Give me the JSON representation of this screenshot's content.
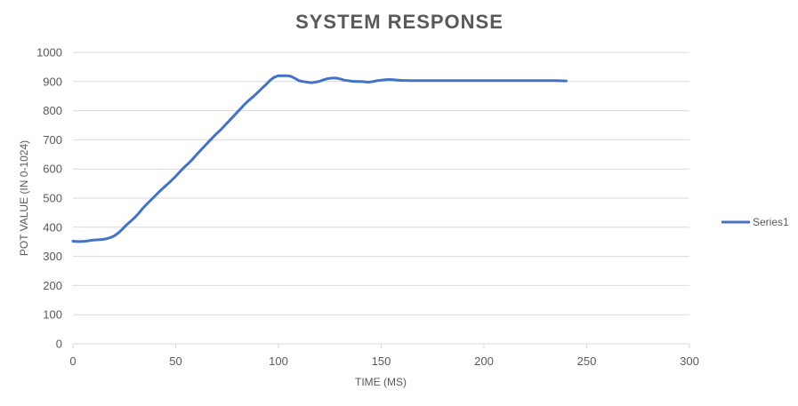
{
  "chart_data": {
    "type": "line",
    "title": "SYSTEM RESPONSE",
    "xlabel": "TIME (MS)",
    "ylabel": "POT VALUE (IN 0-1024)",
    "xlim": [
      0,
      300
    ],
    "ylim": [
      0,
      1000
    ],
    "x_ticks": [
      0,
      50,
      100,
      150,
      200,
      250,
      300
    ],
    "y_ticks": [
      0,
      100,
      200,
      300,
      400,
      500,
      600,
      700,
      800,
      900,
      1000
    ],
    "grid": true,
    "legend": "right",
    "series": [
      {
        "name": "Series1",
        "color": "#4472c4",
        "x": [
          0,
          2,
          4,
          6,
          8,
          10,
          12,
          14,
          16,
          18,
          20,
          22,
          24,
          26,
          28,
          30,
          32,
          34,
          36,
          38,
          40,
          42,
          44,
          46,
          48,
          50,
          52,
          54,
          56,
          58,
          60,
          62,
          64,
          66,
          68,
          70,
          72,
          74,
          76,
          78,
          80,
          82,
          84,
          86,
          88,
          90,
          92,
          94,
          96,
          98,
          100,
          102,
          104,
          106,
          108,
          110,
          112,
          114,
          116,
          118,
          120,
          122,
          124,
          126,
          128,
          130,
          132,
          134,
          136,
          138,
          140,
          142,
          144,
          146,
          148,
          150,
          152,
          154,
          156,
          158,
          160,
          165,
          170,
          175,
          180,
          185,
          190,
          195,
          200,
          205,
          210,
          215,
          220,
          225,
          230,
          235,
          240
        ],
        "y": [
          352,
          351,
          351,
          352,
          354,
          356,
          357,
          358,
          360,
          364,
          370,
          380,
          393,
          408,
          420,
          433,
          448,
          465,
          480,
          494,
          508,
          522,
          535,
          548,
          561,
          575,
          590,
          605,
          618,
          632,
          648,
          663,
          678,
          693,
          708,
          722,
          735,
          750,
          765,
          780,
          795,
          810,
          825,
          838,
          850,
          863,
          877,
          890,
          905,
          915,
          920,
          920,
          920,
          918,
          911,
          903,
          900,
          898,
          896,
          898,
          901,
          906,
          910,
          912,
          912,
          909,
          905,
          903,
          901,
          900,
          900,
          899,
          898,
          900,
          903,
          905,
          906,
          907,
          906,
          905,
          904,
          903,
          903,
          903,
          903,
          903,
          903,
          903,
          903,
          903,
          903,
          903,
          903,
          903,
          903,
          903,
          902
        ]
      }
    ]
  }
}
